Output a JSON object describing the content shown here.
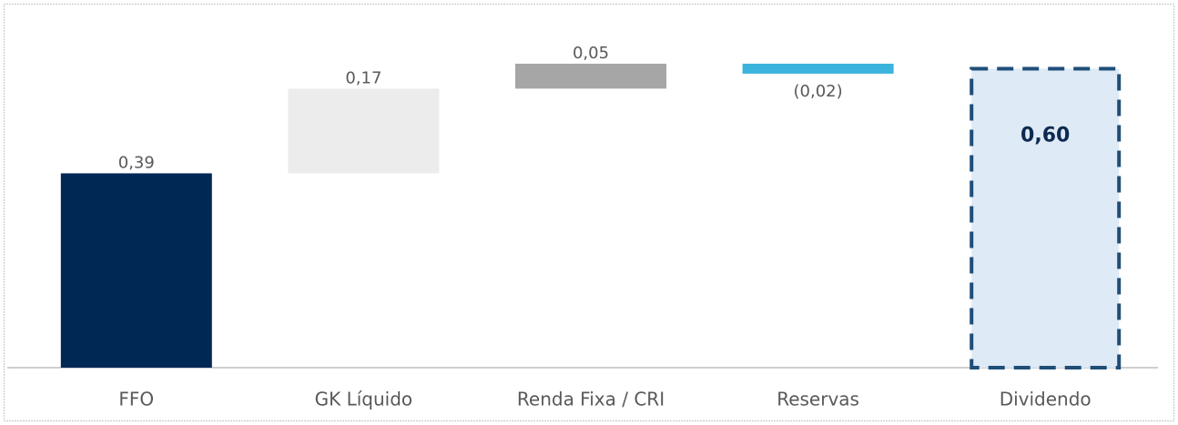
{
  "chart_data": {
    "type": "waterfall",
    "categories": [
      "FFO",
      "GK Líquido",
      "Renda Fixa / CRI",
      "Reservas",
      "Dividendo"
    ],
    "values": [
      0.39,
      0.17,
      0.05,
      -0.02,
      0.6
    ],
    "value_labels": [
      "0,39",
      "0,17",
      "0,05",
      "(0,02)",
      "0,60"
    ],
    "colors": [
      "#002855",
      "#ececec",
      "#a6a6a6",
      "#3ab4dc",
      "#deeaf6"
    ],
    "total_index": 4,
    "total_border_color": "#1f4e79"
  }
}
